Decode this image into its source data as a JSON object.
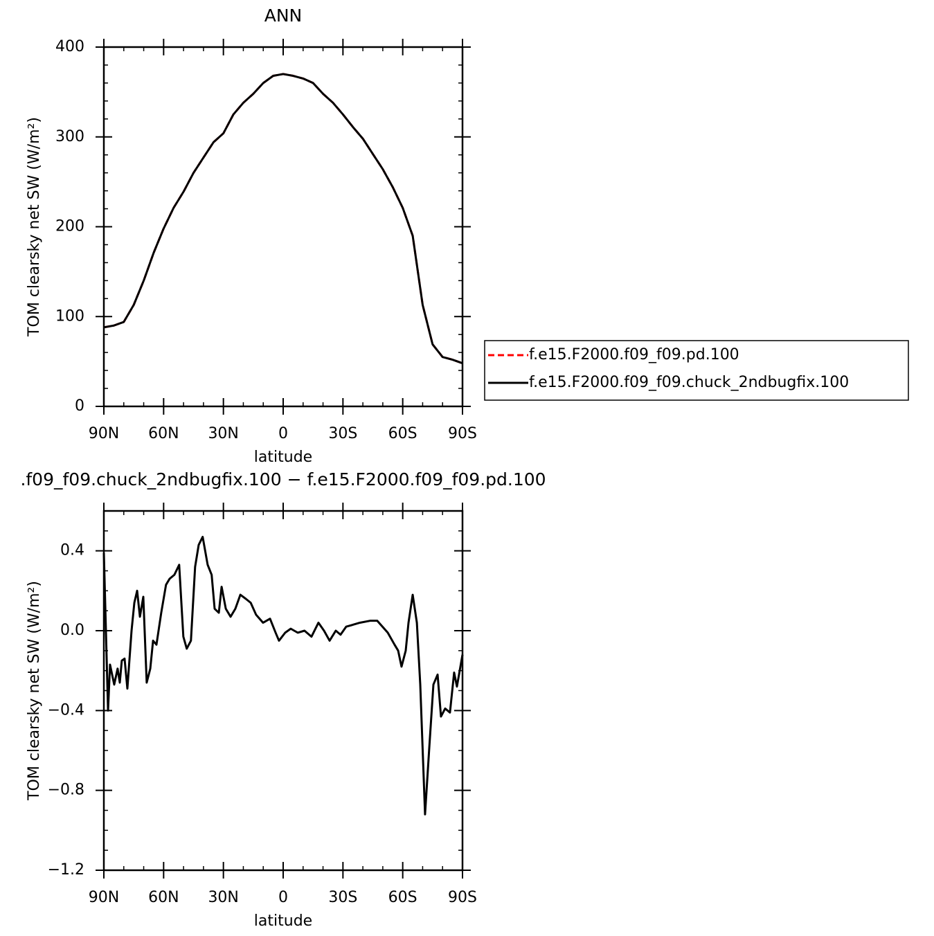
{
  "chart_data": [
    {
      "type": "line",
      "title": "ANN",
      "xlabel": "latitude",
      "ylabel": "TOM clearsky net SW (W/m²)",
      "xlim": [
        90,
        -90
      ],
      "xticks": [
        {
          "value": 90,
          "label": "90N"
        },
        {
          "value": 60,
          "label": "60N"
        },
        {
          "value": 30,
          "label": "30N"
        },
        0,
        {
          "value": -30,
          "label": "30S"
        },
        {
          "value": -60,
          "label": "60S"
        },
        {
          "value": -90,
          "label": "90S"
        }
      ],
      "ylim": [
        0,
        400
      ],
      "yticks": [
        0,
        100,
        200,
        300,
        400
      ],
      "x": [
        90,
        85,
        80,
        75,
        70,
        65,
        60,
        55,
        50,
        45,
        40,
        35,
        30,
        25,
        20,
        15,
        10,
        5,
        0,
        -5,
        -10,
        -15,
        -20,
        -25,
        -30,
        -35,
        -40,
        -45,
        -50,
        -55,
        -60,
        -65,
        -70,
        -75,
        -80,
        -85,
        -90
      ],
      "series": [
        {
          "name": "f.e15.F2000.f09_f09.pd.100",
          "color": "#ff0000",
          "dash": true,
          "values": [
            88,
            90,
            94,
            113,
            140,
            171,
            198,
            221,
            239,
            260,
            277,
            294,
            304,
            325,
            338,
            348,
            360,
            368,
            370,
            368,
            365,
            360,
            348,
            338,
            325,
            311,
            298,
            281,
            264,
            244,
            221,
            190,
            113,
            69,
            55,
            52,
            48
          ]
        },
        {
          "name": "f.e15.F2000.f09_f09.chuck_2ndbugfix.100",
          "color": "#000000",
          "dash": false,
          "values": [
            88,
            90,
            94,
            113,
            140,
            171,
            198,
            221,
            239,
            260,
            277,
            294,
            304,
            325,
            338,
            348,
            360,
            368,
            370,
            368,
            365,
            360,
            348,
            338,
            325,
            311,
            298,
            281,
            264,
            244,
            221,
            190,
            113,
            69,
            55,
            52,
            48
          ]
        }
      ]
    },
    {
      "type": "line",
      "title": ".f09_f09.chuck_2ndbugfix.100 − f.e15.F2000.f09_f09.pd.100",
      "xlabel": "latitude",
      "ylabel": "TOM clearsky net SW (W/m²)",
      "xlim": [
        90,
        -90
      ],
      "xticks": [
        {
          "value": 90,
          "label": "90N"
        },
        {
          "value": 60,
          "label": "60N"
        },
        {
          "value": 30,
          "label": "30N"
        },
        0,
        {
          "value": -30,
          "label": "30S"
        },
        {
          "value": -60,
          "label": "60S"
        },
        {
          "value": -90,
          "label": "90S"
        }
      ],
      "ylim": [
        -1.2,
        0.6
      ],
      "yticks": [
        {
          "value": -1.2,
          "label": "−1.2"
        },
        {
          "value": -0.8,
          "label": "−0.8"
        },
        {
          "value": -0.4,
          "label": "−0.4"
        },
        {
          "value": 0,
          "label": "0.0"
        },
        {
          "value": 0.4,
          "label": "0.4"
        }
      ],
      "x": [
        90,
        87.9,
        86.9,
        84.8,
        83.1,
        82.0,
        81.0,
        79.6,
        78.2,
        76.1,
        74.7,
        73.3,
        71.9,
        70.2,
        68.5,
        66.7,
        65.3,
        63.6,
        61.2,
        58.8,
        57.0,
        54.6,
        52.2,
        50.1,
        48.4,
        46.3,
        44.2,
        42.4,
        40.4,
        37.9,
        35.9,
        34.4,
        32.3,
        30.9,
        28.8,
        26.4,
        24.0,
        21.5,
        18.8,
        16.3,
        13.6,
        10.1,
        6.6,
        3.8,
        2.1,
        -1.0,
        -3.8,
        -7.3,
        -10.7,
        -14.2,
        -17.7,
        -20.5,
        -23.3,
        -26.4,
        -28.8,
        -31.6,
        -35.1,
        -38.5,
        -43.8,
        -47.2,
        -52.5,
        -55.9,
        -57.7,
        -59.4,
        -61.5,
        -62.9,
        -65.0,
        -67.1,
        -68.8,
        -71.2,
        -73.3,
        -75.4,
        -77.5,
        -79.2,
        -81.3,
        -83.7,
        -85.8,
        -87.2,
        -90
      ],
      "series": [
        {
          "color": "#000000",
          "dash": false,
          "values": [
            0.39,
            -0.4,
            -0.17,
            -0.27,
            -0.19,
            -0.26,
            -0.15,
            -0.14,
            -0.29,
            0.0,
            0.14,
            0.2,
            0.07,
            0.17,
            -0.26,
            -0.19,
            -0.05,
            -0.07,
            0.09,
            0.23,
            0.26,
            0.28,
            0.33,
            -0.03,
            -0.09,
            -0.05,
            0.32,
            0.43,
            0.47,
            0.33,
            0.28,
            0.11,
            0.09,
            0.22,
            0.11,
            0.07,
            0.11,
            0.18,
            0.16,
            0.14,
            0.08,
            0.04,
            0.06,
            -0.01,
            -0.05,
            -0.01,
            0.01,
            -0.01,
            0.0,
            -0.03,
            0.04,
            0.0,
            -0.05,
            0.0,
            -0.02,
            0.02,
            0.03,
            0.04,
            0.05,
            0.05,
            -0.01,
            -0.07,
            -0.1,
            -0.18,
            -0.1,
            0.04,
            0.18,
            0.04,
            -0.27,
            -0.92,
            -0.59,
            -0.27,
            -0.22,
            -0.43,
            -0.39,
            -0.41,
            -0.21,
            -0.28,
            -0.12
          ]
        }
      ]
    }
  ]
}
